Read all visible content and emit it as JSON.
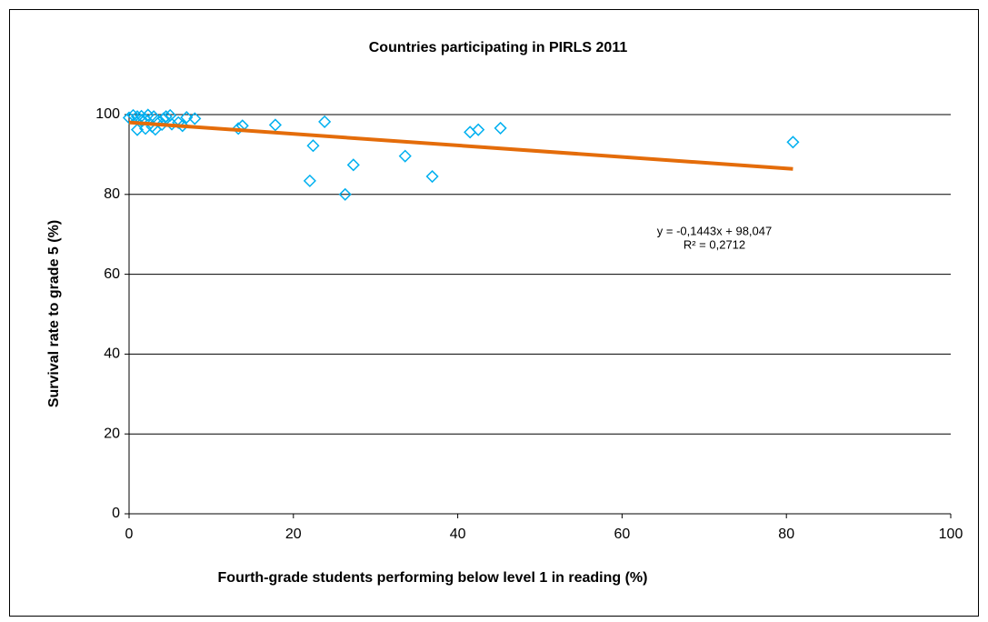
{
  "chart_data": {
    "type": "scatter",
    "title": "Countries participating in PIRLS 2011",
    "x_label": "Fourth-grade students performing below  level 1 in reading (%)",
    "y_label": "Survival rate to grade 5 (%)",
    "xlim": [
      0,
      100
    ],
    "xticks": [
      0,
      20,
      40,
      60,
      80,
      100
    ],
    "ylim": [
      0,
      100
    ],
    "yticks": [
      0,
      20,
      40,
      60,
      80,
      100
    ],
    "grid": true,
    "series": [
      {
        "name": "Countries",
        "color": "#00b0f0",
        "x": [
          0,
          0.5,
          1,
          1,
          1.5,
          1.5,
          2,
          2,
          2.3,
          2.8,
          3,
          3.2,
          3.5,
          4,
          4.2,
          4.5,
          5,
          5.2,
          6,
          6.5,
          7,
          8,
          13.3,
          13.8,
          17.8,
          22,
          22.4,
          23.8,
          26.3,
          27.3,
          33.6,
          36.9,
          41.5,
          42.5,
          45.2,
          80.8
        ],
        "values": [
          99.2,
          99.8,
          96.2,
          99.5,
          98.5,
          99.6,
          96.5,
          98.8,
          99.9,
          97,
          99.5,
          96.3,
          98.5,
          97.5,
          99,
          99.5,
          99.8,
          97.6,
          98,
          97.2,
          99.3,
          99,
          96.5,
          97.2,
          97.4,
          83.4,
          92.2,
          98.2,
          80,
          87.4,
          89.6,
          84.5,
          95.6,
          96.2,
          96.6,
          93.1
        ]
      }
    ],
    "trendline": {
      "color": "#e46c0a",
      "slope": -0.1443,
      "intercept": 98.047,
      "x": [
        0,
        80.8
      ]
    },
    "annotations": [
      "y = -0,1443x + 98,047",
      "R² = 0,2712"
    ]
  }
}
